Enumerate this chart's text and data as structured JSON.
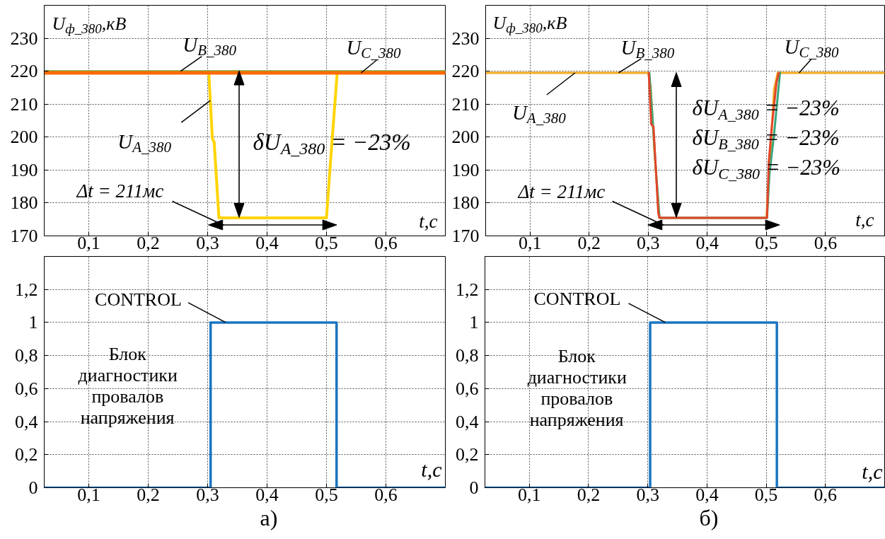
{
  "chart_data": [
    {
      "type": "line",
      "xlabel": "t,с",
      "ylabel": "U$_{ф_380}$,кВ",
      "xlim": [
        0.025,
        0.7
      ],
      "xticks": [
        {
          "value": 0.1,
          "label": "0,1"
        },
        {
          "value": 0.2,
          "label": "0,2"
        },
        {
          "value": 0.3,
          "label": "0,3"
        },
        {
          "value": 0.4,
          "label": "0,4"
        },
        {
          "value": 0.5,
          "label": "0,5"
        },
        {
          "value": 0.6,
          "label": "0,6"
        }
      ],
      "ylim": [
        170,
        240
      ],
      "yticks": [
        170,
        180,
        190,
        200,
        210,
        220,
        230
      ],
      "grid": true,
      "series": [
        {
          "name": "U$_{A_380}$",
          "color": "#ffd400",
          "x": [
            0.302,
            0.308,
            0.311,
            0.319,
            0.5,
            0.508,
            0.518
          ],
          "values": [
            219.5,
            199.5,
            198.5,
            175.5,
            175.5,
            195.5,
            219.5
          ]
        },
        {
          "name": "U$_{B_380}$",
          "color": "#76a832",
          "x": [
            0.025,
            0.7
          ],
          "values": [
            220,
            220
          ]
        },
        {
          "name": "U$_{C_380}$",
          "color": "#ff6a00",
          "x": [
            0.025,
            0.7
          ],
          "values": [
            219.5,
            219.5
          ]
        }
      ],
      "annotations": [
        "δU$_{A_380}$ = −23%",
        "Δt = 211мс"
      ]
    },
    {
      "type": "line",
      "xlabel": "t,с",
      "ylabel": "U$_{ф_380}$,кВ",
      "xlim": [
        0.025,
        0.7
      ],
      "xticks": [
        {
          "value": 0.1,
          "label": "0,1"
        },
        {
          "value": 0.2,
          "label": "0,2"
        },
        {
          "value": 0.3,
          "label": "0,3"
        },
        {
          "value": 0.4,
          "label": "0,4"
        },
        {
          "value": 0.5,
          "label": "0,5"
        },
        {
          "value": 0.6,
          "label": "0,6"
        }
      ],
      "ylim": [
        170,
        240
      ],
      "yticks": [
        170,
        180,
        190,
        200,
        210,
        220,
        230
      ],
      "grid": true,
      "series": [
        {
          "name": "U$_{A_380}$",
          "color": "#f2a81c",
          "x": [
            0.025,
            0.3,
            0.304,
            0.311,
            0.319,
            0.5,
            0.507,
            0.513,
            0.519,
            0.7
          ],
          "values": [
            219.5,
            219.5,
            215.5,
            194.5,
            175.5,
            175.5,
            196,
            214.5,
            219.5,
            219.5
          ]
        },
        {
          "name": "U$_{B_380}$",
          "color": "#3aa57a",
          "x": [
            0.302,
            0.307,
            0.313,
            0.319,
            0.501,
            0.505,
            0.513,
            0.523
          ],
          "values": [
            219.5,
            206.5,
            190,
            175.5,
            175.5,
            188.5,
            201,
            219.5
          ]
        },
        {
          "name": "U$_{C_380}$",
          "color": "#e2462a",
          "x": [
            0.301,
            0.305,
            0.309,
            0.317,
            0.319,
            0.501,
            0.504,
            0.509,
            0.517,
            0.521
          ],
          "values": [
            219.5,
            204,
            203,
            177,
            175.5,
            175.5,
            192.5,
            203,
            216.5,
            219.5
          ]
        }
      ],
      "annotations": [
        "δU$_{A_380}$ = −23%",
        "δU$_{B_380}$ = −23%",
        "δU$_{C_380}$ = −23%",
        "Δt = 211мс"
      ]
    },
    {
      "type": "step",
      "xlabel": "t,с",
      "xlim": [
        0.025,
        0.7
      ],
      "xticks": [
        {
          "value": 0.1,
          "label": "0,1"
        },
        {
          "value": 0.2,
          "label": "0,2"
        },
        {
          "value": 0.3,
          "label": "0,3"
        },
        {
          "value": 0.4,
          "label": "0,4"
        },
        {
          "value": 0.5,
          "label": "0,5"
        },
        {
          "value": 0.6,
          "label": "0,6"
        }
      ],
      "ylim": [
        0,
        1.4
      ],
      "yticks": [
        0,
        {
          "value": 0.2,
          "label": "0,2"
        },
        {
          "value": 0.4,
          "label": "0,4"
        },
        {
          "value": 0.6,
          "label": "0,6"
        },
        {
          "value": 0.8,
          "label": "0,8"
        },
        1,
        {
          "value": 1.2,
          "label": "1,2"
        }
      ],
      "grid": true,
      "series": [
        {
          "name": "CONTROL",
          "color": "#1a75c2",
          "x": [
            0.025,
            0.305,
            0.517,
            0.7
          ],
          "values": [
            0,
            1,
            0,
            0
          ]
        }
      ],
      "annotations": [
        "Блок диагностики провалов напряжения",
        "а)"
      ]
    },
    {
      "type": "step",
      "xlabel": "t,с",
      "xlim": [
        0.025,
        0.7
      ],
      "xticks": [
        {
          "value": 0.1,
          "label": "0,1"
        },
        {
          "value": 0.2,
          "label": "0,2"
        },
        {
          "value": 0.3,
          "label": "0,3"
        },
        {
          "value": 0.4,
          "label": "0,4"
        },
        {
          "value": 0.5,
          "label": "0,5"
        },
        {
          "value": 0.6,
          "label": "0,6"
        }
      ],
      "ylim": [
        0,
        1.4
      ],
      "yticks": [
        0,
        {
          "value": 0.2,
          "label": "0,2"
        },
        {
          "value": 0.4,
          "label": "0,4"
        },
        {
          "value": 0.6,
          "label": "0,6"
        },
        {
          "value": 0.8,
          "label": "0,8"
        },
        1,
        {
          "value": 1.2,
          "label": "1,2"
        }
      ],
      "grid": true,
      "series": [
        {
          "name": "CONTROL",
          "color": "#1a75c2",
          "x": [
            0.025,
            0.304,
            0.518,
            0.7
          ],
          "values": [
            0,
            1,
            0,
            0
          ]
        }
      ],
      "annotations": [
        "Блок диагностики провалов напряжения",
        "б)"
      ]
    }
  ]
}
